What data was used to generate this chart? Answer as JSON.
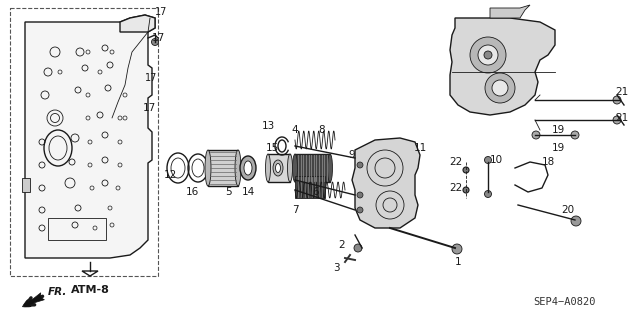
{
  "background_color": "#ffffff",
  "line_color": "#1a1a1a",
  "fig_width": 6.4,
  "fig_height": 3.19,
  "dpi": 100,
  "atm_label": "ATM-8",
  "fr_label": "FR.",
  "part_id": "SEP4−A0820"
}
